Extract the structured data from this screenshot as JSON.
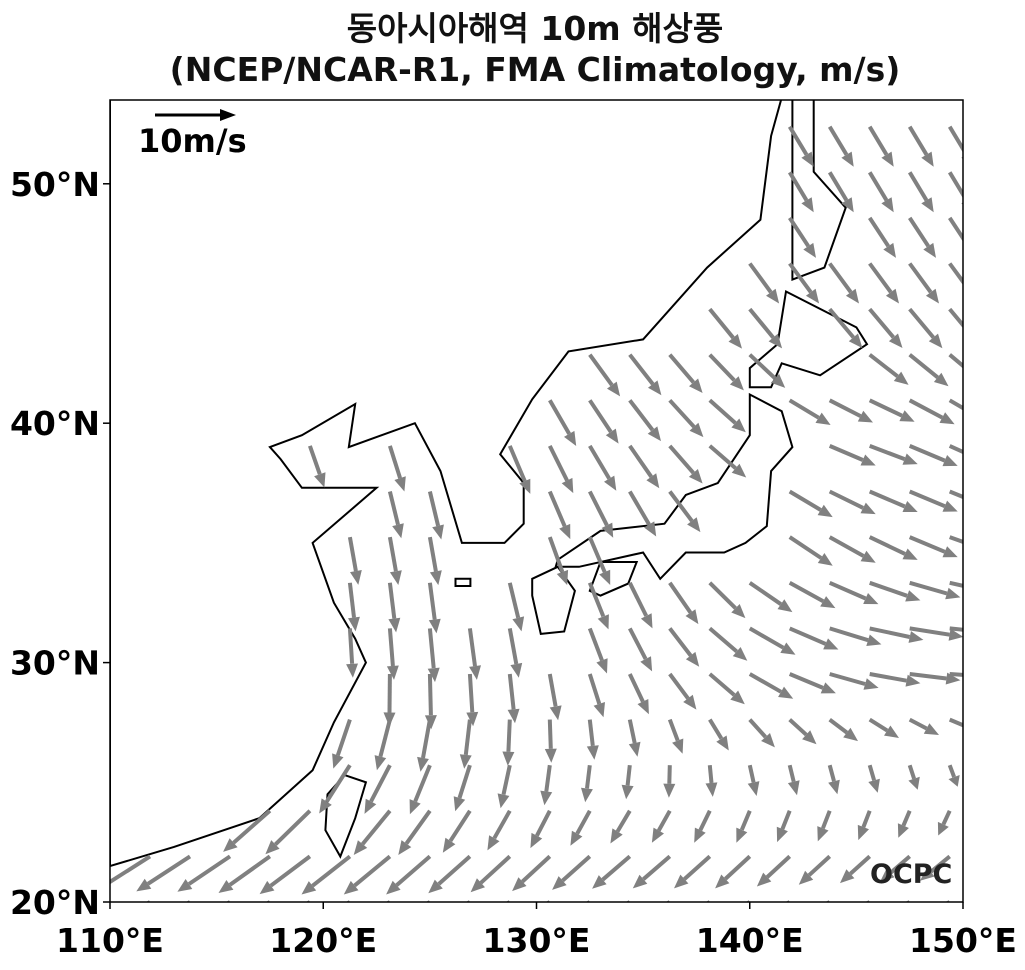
{
  "title": {
    "line1": "동아시아해역 10m 해상풍",
    "line2": "(NCEP/NCAR-R1, FMA Climatology, m/s)"
  },
  "reference": {
    "label": "10m/s",
    "speed": 10
  },
  "logo": "OCPC",
  "colors": {
    "vector": "#808080",
    "coast": "#000000"
  },
  "chart_data": {
    "type": "quiver",
    "xlim": [
      110,
      150
    ],
    "ylim": [
      20,
      53.5
    ],
    "x_ticks": [
      110,
      120,
      130,
      140,
      150
    ],
    "x_tick_labels": [
      "110°E",
      "120°E",
      "130°E",
      "140°E",
      "150°E"
    ],
    "y_ticks": [
      20,
      30,
      40,
      50
    ],
    "y_tick_labels": [
      "20°N",
      "30°N",
      "40°N",
      "50°N"
    ],
    "grid_spacing_deg": {
      "lon": 1.875,
      "lat": 1.905
    },
    "field_lons": [
      110,
      115,
      120,
      125,
      130,
      135,
      140,
      145,
      150
    ],
    "field_lats": [
      20,
      25,
      30,
      35,
      40,
      45,
      50,
      55
    ],
    "u": [
      [
        -7,
        -7,
        -7,
        -7,
        -7,
        -7,
        -7,
        -6,
        -6
      ],
      [
        -7,
        -6,
        -5,
        -3,
        -1,
        -1,
        0,
        0,
        0
      ],
      [
        0,
        0,
        0,
        0.5,
        1,
        3,
        6,
        7,
        7
      ],
      [
        1,
        1,
        1,
        1,
        2,
        3,
        5,
        6,
        6
      ],
      [
        2,
        2,
        2,
        2,
        3,
        4,
        5,
        6,
        6
      ],
      [
        4,
        4,
        4,
        4,
        4,
        4,
        4,
        4,
        4
      ],
      [
        3,
        3,
        3,
        3,
        3,
        3,
        3,
        3,
        3
      ],
      [
        3,
        3,
        3,
        3,
        3,
        3,
        3,
        3,
        3
      ]
    ],
    "v": [
      [
        -4,
        -4,
        -4,
        -4,
        -4,
        -4,
        -4,
        -3,
        -3
      ],
      [
        -5,
        -5,
        -6,
        -6,
        -5,
        -4,
        -4,
        -4,
        -3
      ],
      [
        -6,
        -6,
        -6,
        -7,
        -6,
        -5,
        -3,
        -1,
        0
      ],
      [
        -6,
        -6,
        -6,
        -6,
        -6,
        -6,
        -4,
        -3,
        -2
      ],
      [
        -5,
        -5,
        -5,
        -6,
        -6,
        -5,
        -3,
        -2,
        -3
      ],
      [
        -5,
        -5,
        -5,
        -5,
        -5,
        -5,
        -5,
        -5,
        -5
      ],
      [
        -5,
        -5,
        -5,
        -5,
        -5,
        -5,
        -5,
        -5,
        -5
      ],
      [
        -5,
        -5,
        -5,
        -5,
        -5,
        -5,
        -5,
        -5,
        -5
      ]
    ],
    "coastlines": [
      {
        "name": "asia-mainland",
        "pts": [
          [
            110,
            21.5
          ],
          [
            113,
            22.3
          ],
          [
            117,
            23.5
          ],
          [
            119.5,
            25.5
          ],
          [
            120.5,
            27.5
          ],
          [
            122,
            30
          ],
          [
            121.5,
            31
          ],
          [
            120.5,
            32.5
          ],
          [
            119.5,
            35
          ],
          [
            122.5,
            37.3
          ],
          [
            119,
            37.3
          ],
          [
            118,
            38.5
          ],
          [
            117.5,
            39
          ],
          [
            119,
            39.5
          ],
          [
            121.5,
            40.8
          ],
          [
            121.2,
            39
          ],
          [
            124.3,
            40
          ],
          [
            125.5,
            38
          ],
          [
            126.5,
            35
          ],
          [
            128.5,
            35
          ],
          [
            129.4,
            35.8
          ],
          [
            129.4,
            37.5
          ],
          [
            128.3,
            38.7
          ],
          [
            129.8,
            41
          ],
          [
            131.5,
            43
          ],
          [
            135,
            43.5
          ],
          [
            138,
            46.5
          ],
          [
            140.5,
            48.5
          ],
          [
            141,
            52
          ],
          [
            141.5,
            53.6
          ],
          [
            110,
            53.6
          ]
        ]
      },
      {
        "name": "sakhalin",
        "pts": [
          [
            142,
            46
          ],
          [
            143.5,
            46.5
          ],
          [
            144.5,
            49
          ],
          [
            143,
            50.5
          ],
          [
            143,
            53.6
          ],
          [
            142,
            53.6
          ],
          [
            142,
            52
          ]
        ]
      },
      {
        "name": "hokkaido",
        "pts": [
          [
            140,
            41.5
          ],
          [
            141,
            41.5
          ],
          [
            141.5,
            42.5
          ],
          [
            143.3,
            42
          ],
          [
            145.5,
            43.3
          ],
          [
            145,
            44
          ],
          [
            141.7,
            45.5
          ],
          [
            141.3,
            43.3
          ],
          [
            140,
            42.3
          ]
        ]
      },
      {
        "name": "honshu",
        "pts": [
          [
            130.9,
            34
          ],
          [
            131,
            34.3
          ],
          [
            133,
            35.5
          ],
          [
            136,
            35.8
          ],
          [
            137,
            37
          ],
          [
            138.5,
            37.5
          ],
          [
            140,
            39.5
          ],
          [
            140,
            41.2
          ],
          [
            141.5,
            40.5
          ],
          [
            142,
            39
          ],
          [
            141,
            38
          ],
          [
            140.8,
            35.7
          ],
          [
            139.8,
            35
          ],
          [
            138.8,
            34.6
          ],
          [
            137,
            34.6
          ],
          [
            135.8,
            33.5
          ],
          [
            135,
            34.6
          ],
          [
            132,
            34
          ]
        ]
      },
      {
        "name": "kyushu",
        "pts": [
          [
            129.8,
            33.5
          ],
          [
            131,
            34
          ],
          [
            131.8,
            33
          ],
          [
            131.3,
            31.3
          ],
          [
            130.2,
            31.2
          ],
          [
            129.8,
            32.8
          ]
        ]
      },
      {
        "name": "shikoku",
        "pts": [
          [
            132.5,
            33
          ],
          [
            133,
            34.2
          ],
          [
            134.7,
            34.2
          ],
          [
            134.3,
            33.3
          ],
          [
            133,
            32.8
          ]
        ]
      },
      {
        "name": "jeju",
        "pts": [
          [
            126.2,
            33.5
          ],
          [
            126.9,
            33.5
          ],
          [
            126.9,
            33.2
          ],
          [
            126.2,
            33.2
          ]
        ]
      },
      {
        "name": "taiwan",
        "pts": [
          [
            121,
            25.3
          ],
          [
            122,
            25
          ],
          [
            121.5,
            23.5
          ],
          [
            120.8,
            21.9
          ],
          [
            120.1,
            23
          ],
          [
            120.2,
            24.5
          ]
        ]
      }
    ]
  }
}
